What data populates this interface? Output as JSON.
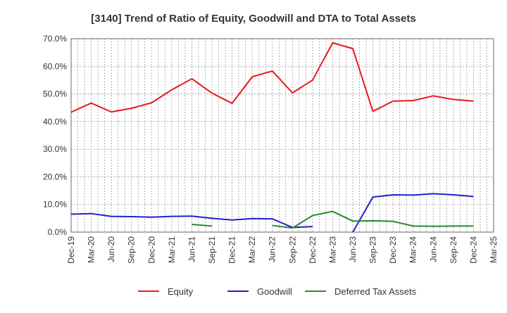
{
  "chart_data": {
    "type": "line",
    "title": "[3140]  Trend of Ratio of Equity, Goodwill and DTA to Total Assets",
    "xlabel": "",
    "ylabel": "",
    "ylim": [
      0,
      70
    ],
    "y_ticks": [
      0,
      10,
      20,
      30,
      40,
      50,
      60,
      70
    ],
    "y_tick_labels": [
      "0.0%",
      "10.0%",
      "20.0%",
      "30.0%",
      "40.0%",
      "50.0%",
      "60.0%",
      "70.0%"
    ],
    "x_tick_labels": [
      "Dec-19",
      "Mar-20",
      "Jun-20",
      "Sep-20",
      "Dec-20",
      "Mar-21",
      "Jun-21",
      "Sep-21",
      "Dec-21",
      "Mar-22",
      "Jun-22",
      "Sep-22",
      "Dec-22",
      "Mar-23",
      "Jun-23",
      "Sep-23",
      "Dec-23",
      "Mar-24",
      "Jun-24",
      "Sep-24",
      "Dec-24",
      "Mar-25"
    ],
    "grid": true,
    "legend_position": "bottom",
    "series": [
      {
        "name": "Equity",
        "color": "#e8191d",
        "values": [
          43.4,
          46.7,
          43.5,
          44.8,
          46.8,
          51.5,
          55.5,
          50.3,
          46.6,
          56.2,
          58.3,
          50.4,
          55.0,
          68.5,
          66.4,
          43.7,
          47.4,
          47.6,
          49.3,
          48.0,
          47.4,
          null
        ]
      },
      {
        "name": "Goodwill",
        "color": "#1f1fd1",
        "values": [
          6.5,
          6.7,
          5.7,
          5.6,
          5.4,
          5.7,
          5.8,
          5.0,
          4.4,
          4.9,
          4.8,
          1.7,
          2.0,
          null,
          0.0,
          12.7,
          13.5,
          13.4,
          13.9,
          13.5,
          12.9,
          null
        ]
      },
      {
        "name": "Deferred Tax Assets",
        "color": "#2a8a2a",
        "values": [
          null,
          null,
          null,
          null,
          null,
          null,
          2.8,
          2.2,
          null,
          null,
          2.4,
          1.5,
          6.0,
          7.5,
          4.0,
          4.1,
          3.9,
          2.2,
          2.1,
          2.2,
          2.2,
          null
        ]
      }
    ]
  }
}
